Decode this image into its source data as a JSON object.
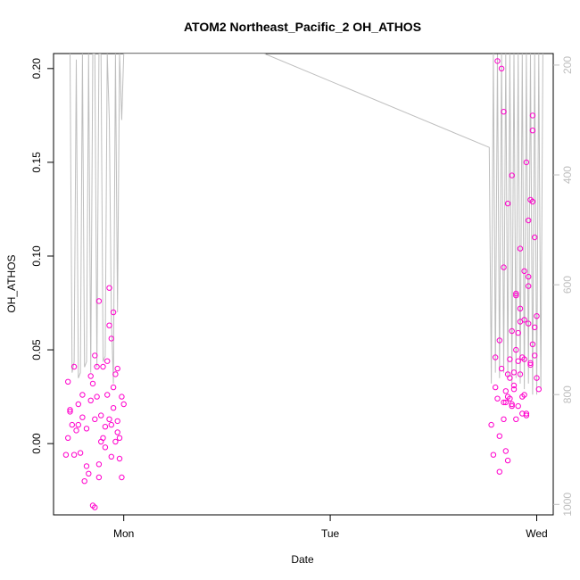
{
  "chart_data": {
    "type": "scatter",
    "title": "ATOM2 Northeast_Pacific_2 OH_ATHOS",
    "xlabel": "Date",
    "ylabel": "OH_ATHOS",
    "xlim": [
      -0.34,
      2.08
    ],
    "ylim": [
      -0.038,
      0.208
    ],
    "x_ticks": [
      {
        "value": 0,
        "label": "Mon"
      },
      {
        "value": 1,
        "label": "Tue"
      },
      {
        "value": 2,
        "label": "Wed"
      }
    ],
    "y_ticks": [
      0.0,
      0.05,
      0.1,
      0.15,
      0.2
    ],
    "y_tick_labels": [
      "0.00",
      "0.05",
      "0.10",
      "0.15",
      "0.20"
    ],
    "y2_ticks": [
      200,
      400,
      600,
      800,
      1000
    ],
    "y2_lim": [
      1019,
      179
    ],
    "grid": false,
    "legend": "none",
    "colors": {
      "points": "#ff00cc",
      "depth_line": "#bebebe",
      "axis": "#000000",
      "right_axis": "#bebebe"
    },
    "series": [
      {
        "values_kind": "OH_ATHOS points",
        "x": [
          -0.28,
          -0.27,
          -0.26,
          -0.24,
          -0.22,
          -0.2,
          -0.18,
          -0.16,
          -0.14,
          -0.12,
          -0.1,
          -0.08,
          -0.06,
          -0.05,
          -0.04,
          -0.03,
          -0.02,
          0.0,
          -0.27,
          -0.25,
          -0.23,
          -0.21,
          -0.19,
          -0.17,
          -0.15,
          -0.13,
          -0.11,
          -0.09,
          -0.07,
          -0.05,
          -0.03,
          -0.01,
          -0.26,
          -0.22,
          -0.18,
          -0.14,
          -0.1,
          -0.06,
          -0.02,
          -0.24,
          -0.2,
          -0.16,
          -0.12,
          -0.08,
          -0.04,
          -0.15,
          -0.14,
          -0.12,
          -0.07,
          -0.07,
          -0.06,
          -0.05,
          -0.13,
          -0.11,
          -0.09,
          -0.03,
          -0.01,
          1.78,
          1.79,
          1.8,
          1.81,
          1.82,
          1.83,
          1.84,
          1.85,
          1.86,
          1.87,
          1.88,
          1.89,
          1.9,
          1.91,
          1.92,
          1.93,
          1.94,
          1.95,
          1.96,
          1.97,
          1.98,
          1.99,
          2.0,
          1.8,
          1.82,
          1.84,
          1.86,
          1.88,
          1.9,
          1.92,
          1.94,
          1.96,
          1.98,
          1.81,
          1.83,
          1.85,
          1.87,
          1.89,
          1.91,
          1.93,
          1.95,
          1.97,
          1.99,
          1.82,
          1.84,
          1.86,
          1.88,
          1.9,
          1.92,
          1.94,
          1.96,
          1.98,
          1.84,
          1.85,
          1.86,
          1.87,
          1.88,
          1.89,
          1.9,
          1.91,
          1.92,
          1.93,
          1.94,
          1.95,
          1.96,
          1.97,
          1.98,
          1.99,
          2.0,
          2.01
        ],
        "y": [
          -0.006,
          0.033,
          0.018,
          0.041,
          0.01,
          0.026,
          -0.012,
          0.036,
          0.047,
          -0.018,
          0.041,
          0.026,
          -0.007,
          0.019,
          0.037,
          0.04,
          -0.008,
          0.021,
          0.003,
          0.01,
          0.007,
          -0.005,
          -0.02,
          -0.016,
          0.032,
          0.025,
          0.001,
          -0.002,
          0.013,
          0.03,
          0.012,
          -0.018,
          0.017,
          0.021,
          0.008,
          0.013,
          0.003,
          0.01,
          0.003,
          -0.006,
          0.014,
          0.023,
          -0.011,
          0.044,
          0.001,
          -0.033,
          -0.034,
          0.076,
          0.083,
          0.063,
          0.056,
          0.07,
          0.041,
          0.015,
          0.009,
          0.006,
          0.025,
          0.01,
          -0.006,
          0.03,
          0.024,
          -0.015,
          0.04,
          0.013,
          -0.004,
          0.037,
          0.045,
          0.06,
          0.038,
          0.08,
          0.059,
          0.072,
          0.046,
          0.092,
          0.016,
          0.119,
          0.043,
          0.167,
          0.11,
          0.068,
          0.046,
          0.004,
          0.022,
          0.025,
          0.021,
          0.079,
          0.104,
          0.066,
          0.084,
          0.129,
          0.204,
          0.2,
          0.022,
          0.024,
          0.031,
          0.044,
          0.025,
          0.015,
          0.13,
          0.062,
          0.055,
          0.094,
          0.128,
          0.143,
          0.05,
          0.065,
          0.045,
          0.064,
          0.175,
          0.177,
          0.028,
          -0.009,
          0.035,
          0.02,
          0.029,
          0.013,
          0.02,
          0.037,
          0.016,
          0.026,
          0.15,
          0.089,
          0.042,
          0.053,
          0.047,
          0.035,
          0.029
        ]
      }
    ],
    "depth_line": {
      "values_kind": "depth trace on right axis",
      "x": [
        -0.26,
        -0.25,
        -0.24,
        -0.23,
        -0.22,
        -0.21,
        -0.2,
        -0.19,
        -0.18,
        -0.17,
        -0.16,
        -0.15,
        -0.14,
        -0.13,
        -0.12,
        -0.11,
        -0.1,
        -0.09,
        -0.08,
        -0.07,
        -0.06,
        -0.05,
        -0.04,
        -0.03,
        -0.02,
        -0.01,
        0.0,
        0.68,
        1.77,
        1.78,
        1.79,
        1.8,
        1.81,
        1.82,
        1.83,
        1.84,
        1.85,
        1.86,
        1.87,
        1.88,
        1.89,
        1.9,
        1.91,
        1.92,
        1.93,
        1.94,
        1.95,
        1.96,
        1.97,
        1.98,
        1.99,
        2.0,
        2.01,
        2.02,
        2.03
      ],
      "y": [
        179,
        760,
        740,
        190,
        770,
        760,
        179,
        750,
        740,
        179,
        760,
        179,
        179,
        750,
        179,
        180,
        740,
        730,
        179,
        300,
        660,
        780,
        179,
        650,
        179,
        300,
        179,
        179,
        350,
        780,
        179,
        760,
        180,
        770,
        179,
        760,
        179,
        770,
        179,
        780,
        179,
        770,
        179,
        780,
        179,
        790,
        179,
        780,
        179,
        800,
        179,
        800,
        179,
        790,
        179
      ]
    }
  }
}
